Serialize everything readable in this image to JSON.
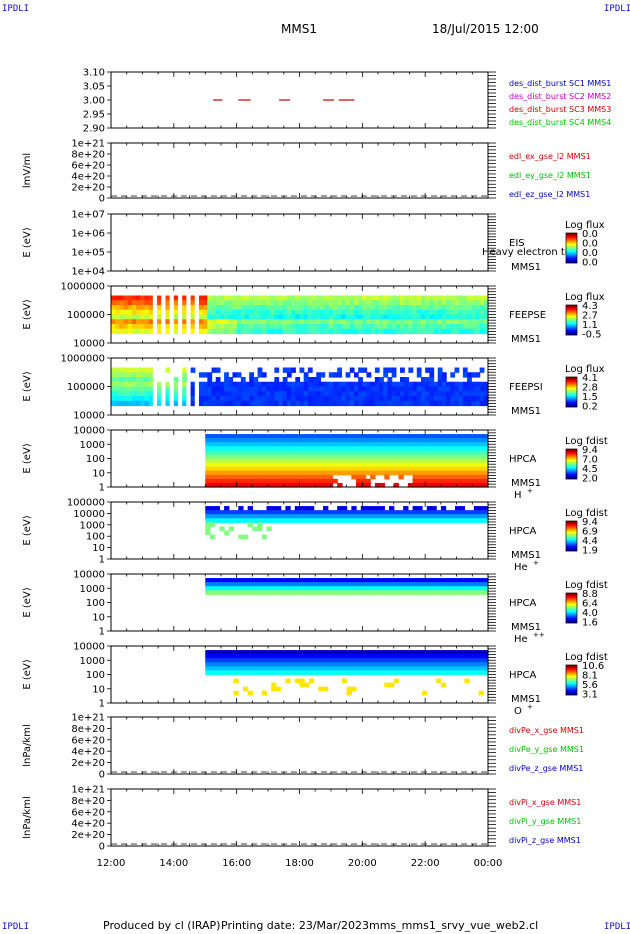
{
  "corner_label": "IPDLI",
  "header": {
    "spacecraft": "MMS1",
    "datetime": "18/Jul/2015 12:00"
  },
  "footer": {
    "produced_by": "Produced by cl (IRAP)",
    "printing_date": "Printing date: 23/Mar/2023",
    "script_name": "mms_mms1_srvy_vue_web2.cl"
  },
  "colors": {
    "red": "#d00000",
    "green": "#00c000",
    "blue": "#0000c0",
    "magenta": "#c000c0",
    "dashed": "#000000"
  },
  "time_axis": {
    "ticks": [
      "12:00",
      "14:00",
      "16:00",
      "18:00",
      "20:00",
      "22:00",
      "00:00"
    ],
    "range_hours": [
      0,
      12
    ]
  },
  "chart_data": [
    {
      "type": "scatter",
      "ylabel": "",
      "ylim": [
        2.9,
        3.1
      ],
      "yticks": [
        "3.10",
        "3.05",
        "3.00",
        "2.95",
        "2.90"
      ],
      "legend": [
        {
          "label": "des_dist_burst SC1 MMS1",
          "color": "#0000c0"
        },
        {
          "label": "des_dist_burst SC2 MMS2",
          "color": "#c000c0"
        },
        {
          "label": "des_dist_burst SC3 MMS3",
          "color": "#d00000"
        },
        {
          "label": "des_dist_burst SC4 MMS4",
          "color": "#00c000"
        }
      ],
      "series": [
        {
          "name": "des_dist_burst SC3 MMS3",
          "y": 3.0,
          "intervals_hours": [
            [
              3.25,
              3.55
            ],
            [
              4.05,
              4.45
            ],
            [
              5.35,
              5.7
            ],
            [
              6.75,
              7.1
            ],
            [
              7.25,
              7.75
            ]
          ]
        }
      ]
    },
    {
      "type": "line",
      "ylabel": "lmV/ml",
      "yticks": [
        "1e+21",
        "8e+20",
        "6e+20",
        "4e+20",
        "2e+20",
        "0"
      ],
      "dashed_zero": true,
      "legend": [
        {
          "label": "edl_ex_gse_l2 MMS1",
          "color": "#d00000"
        },
        {
          "label": "edl_ey_gse_l2 MMS1",
          "color": "#00c000"
        },
        {
          "label": "edl_ez_gse_l2 MMS1",
          "color": "#0000c0"
        }
      ]
    },
    {
      "type": "heatmap",
      "ylabel": "E (eV)",
      "yticks": [
        "1e+07",
        "1e+06",
        "1e+05",
        "1e+04"
      ],
      "instrument": "EIS",
      "subtitle": "Heavy electron top",
      "spacecraft": "MMS1",
      "colorbar_title": "Log flux",
      "colorbar_ticks": [
        "0.0",
        "0.0",
        "0.0",
        "0.0"
      ],
      "data_state": "empty"
    },
    {
      "type": "heatmap",
      "ylabel": "E (eV)",
      "yticks": [
        "1000000",
        "100000",
        "10000"
      ],
      "instrument": "FEEPSE",
      "spacecraft": "MMS1",
      "colorbar_title": "Log flux",
      "colorbar_ticks": [
        "4.3",
        "2.7",
        "1.1",
        "-0.5"
      ],
      "data_state": "full"
    },
    {
      "type": "heatmap",
      "ylabel": "E (eV)",
      "yticks": [
        "1000000",
        "100000",
        "10000"
      ],
      "instrument": "FEEPSI",
      "spacecraft": "MMS1",
      "colorbar_title": "Log flux",
      "colorbar_ticks": [
        "4.1",
        "2.8",
        "1.5",
        "0.2"
      ],
      "data_state": "full"
    },
    {
      "type": "heatmap",
      "ylabel": "E (eV)",
      "yticks": [
        "10000",
        "1000",
        "100",
        "10",
        "1"
      ],
      "instrument": "HPCA",
      "spacecraft": "MMS1",
      "species": "H",
      "species_sup": "+",
      "colorbar_title": "Log fdist",
      "colorbar_ticks": [
        "9.4",
        "7.0",
        "4.5",
        "2.0"
      ],
      "data_start_hours": 3.0
    },
    {
      "type": "heatmap",
      "ylabel": "E (eV)",
      "yticks": [
        "100000",
        "10000",
        "1000",
        "100",
        "10",
        "1"
      ],
      "instrument": "HPCA",
      "spacecraft": "MMS1",
      "species": "He",
      "species_sup": "+",
      "colorbar_title": "Log fdist",
      "colorbar_ticks": [
        "9.4",
        "6.9",
        "4.4",
        "1.9"
      ],
      "data_start_hours": 3.0
    },
    {
      "type": "heatmap",
      "ylabel": "E (eV)",
      "yticks": [
        "10000",
        "1000",
        "100",
        "10",
        "1"
      ],
      "instrument": "HPCA",
      "spacecraft": "MMS1",
      "species": "He",
      "species_sup": "++",
      "colorbar_title": "Log fdist",
      "colorbar_ticks": [
        "8.8",
        "6.4",
        "4.0",
        "1.6"
      ],
      "data_start_hours": 3.0
    },
    {
      "type": "heatmap",
      "ylabel": "E (eV)",
      "yticks": [
        "10000",
        "1000",
        "100",
        "10",
        "1"
      ],
      "instrument": "HPCA",
      "spacecraft": "MMS1",
      "species": "O",
      "species_sup": "+",
      "colorbar_title": "Log fdist",
      "colorbar_ticks": [
        "10.6",
        "8.1",
        "5.6",
        "3.1"
      ],
      "data_start_hours": 3.0
    },
    {
      "type": "line",
      "ylabel": "lnPa/kml",
      "yticks": [
        "1e+21",
        "8e+20",
        "6e+20",
        "4e+20",
        "2e+20",
        "0"
      ],
      "dashed_zero": true,
      "legend": [
        {
          "label": "divPe_x_gse MMS1",
          "color": "#d00000"
        },
        {
          "label": "divPe_y_gse MMS1",
          "color": "#00c000"
        },
        {
          "label": "divPe_z_gse MMS1",
          "color": "#0000c0"
        }
      ]
    },
    {
      "type": "line",
      "ylabel": "lnPa/kml",
      "yticks": [
        "1e+21",
        "8e+20",
        "6e+20",
        "4e+20",
        "2e+20",
        "0"
      ],
      "dashed_zero": true,
      "legend": [
        {
          "label": "divPi_x_gse MMS1",
          "color": "#d00000"
        },
        {
          "label": "divPi_y_gse MMS1",
          "color": "#00c000"
        },
        {
          "label": "divPi_z_gse MMS1",
          "color": "#0000c0"
        }
      ]
    }
  ]
}
